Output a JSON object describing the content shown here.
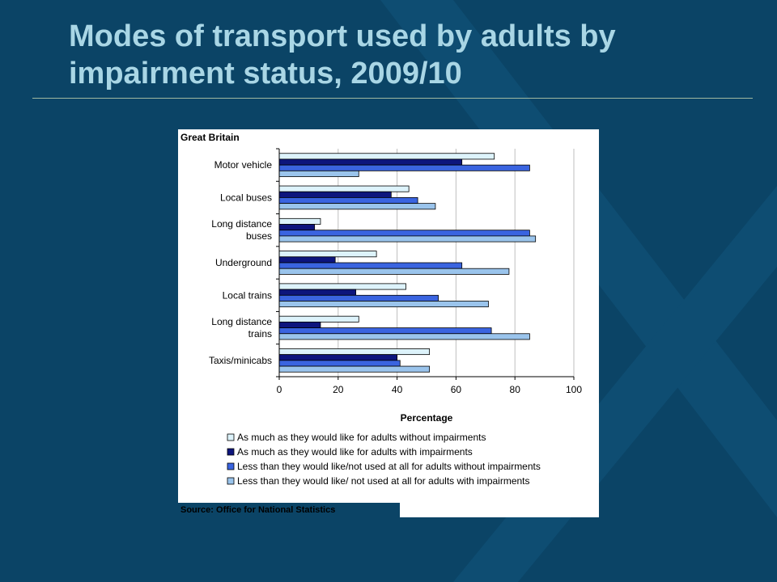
{
  "slide": {
    "title": "Modes of transport used by adults by impairment status, 2009/10",
    "background_color": "#0b4466",
    "title_color": "#a9d6e5"
  },
  "chart_data": {
    "type": "bar",
    "orientation": "horizontal",
    "region_label": "Great Britain",
    "categories": [
      "Motor vehicle",
      "Local buses",
      "Long distance buses",
      "Underground",
      "Local trains",
      "Long distance trains",
      "Taxis/minicabs"
    ],
    "category_lines": [
      [
        "Motor vehicle"
      ],
      [
        "Local buses"
      ],
      [
        "Long distance",
        "buses"
      ],
      [
        "Underground"
      ],
      [
        "Local trains"
      ],
      [
        "Long distance",
        "trains"
      ],
      [
        "Taxis/minicabs"
      ]
    ],
    "series": [
      {
        "name": "As much as they would like for adults without impairments",
        "color": "#ddf3fb",
        "values": [
          73,
          44,
          14,
          33,
          43,
          27,
          51
        ]
      },
      {
        "name": "As much as they would like for adults with impairments",
        "color": "#0d157d",
        "values": [
          62,
          38,
          12,
          19,
          26,
          14,
          40
        ]
      },
      {
        "name": "Less than they would like/not used at all for adults without impairments",
        "color": "#3a64e0",
        "values": [
          85,
          47,
          85,
          62,
          54,
          72,
          41
        ]
      },
      {
        "name": "Less than they would like/ not used at all for adults with impairments",
        "color": "#9ac4ec",
        "values": [
          27,
          53,
          87,
          78,
          71,
          85,
          51
        ]
      }
    ],
    "xlabel": "Percentage",
    "xlim": [
      0,
      100
    ],
    "xticks": [
      0,
      20,
      40,
      60,
      80,
      100
    ],
    "grid": true,
    "legend_position": "bottom",
    "source": "Source: Office for National Statistics"
  }
}
